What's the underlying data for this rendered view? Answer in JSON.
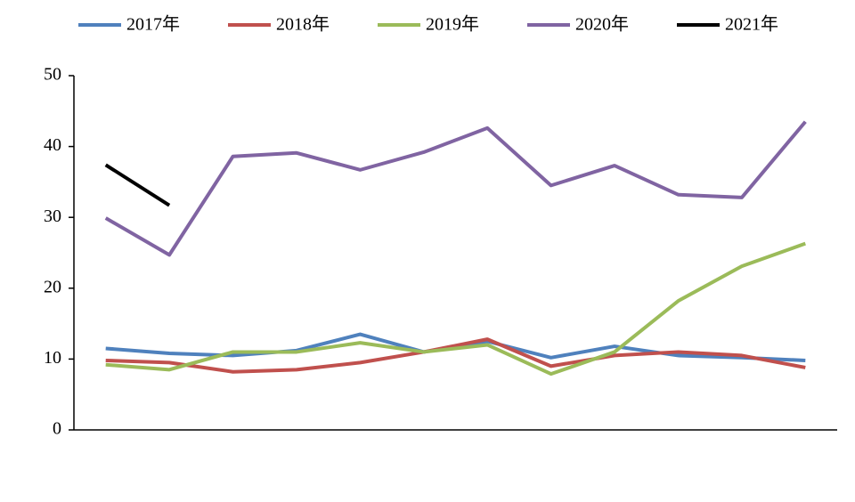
{
  "chart_data": {
    "type": "line",
    "categories": [
      null,
      null,
      null,
      null,
      null,
      null,
      null,
      null,
      null,
      null,
      null,
      null
    ],
    "series": [
      {
        "name": "2017年",
        "color": "#4f81bd",
        "values": [
          11.5,
          10.8,
          10.5,
          11.2,
          13.5,
          11.0,
          12.5,
          10.2,
          11.8,
          10.5,
          10.2,
          9.8
        ]
      },
      {
        "name": "2018年",
        "color": "#c0504d",
        "values": [
          9.8,
          9.5,
          8.2,
          8.5,
          9.5,
          11.0,
          12.8,
          9.0,
          10.5,
          11.0,
          10.5,
          8.8
        ]
      },
      {
        "name": "2019年",
        "color": "#9bbb59",
        "values": [
          9.2,
          8.5,
          11.0,
          11.0,
          12.3,
          11.0,
          12.0,
          7.9,
          11.0,
          18.2,
          23.1,
          26.3
        ]
      },
      {
        "name": "2020年",
        "color": "#8064a2",
        "values": [
          29.9,
          24.7,
          38.6,
          39.1,
          36.7,
          39.2,
          42.6,
          34.5,
          37.3,
          33.2,
          32.8,
          43.5
        ]
      },
      {
        "name": "2021年",
        "color": "#000000",
        "values": [
          37.4,
          31.7,
          null,
          null,
          null,
          null,
          null,
          null,
          null,
          null,
          null,
          null
        ]
      }
    ],
    "ylim": [
      0,
      50
    ],
    "yticks": [
      0,
      10,
      20,
      30,
      40,
      50
    ],
    "legend": "top"
  }
}
